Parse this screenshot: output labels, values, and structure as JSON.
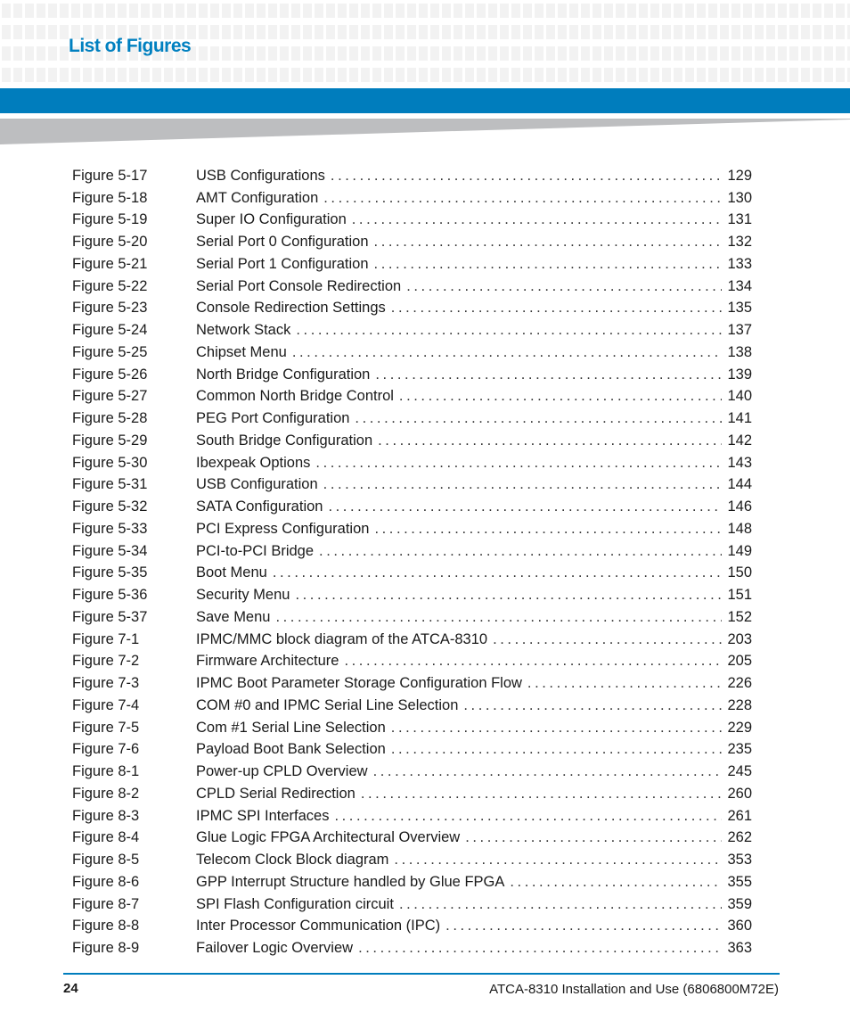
{
  "header": {
    "title": "List of Figures",
    "accent_color": "#007dbd"
  },
  "figures": [
    {
      "label": "Figure 5-17",
      "title": "USB Configurations",
      "page": "129"
    },
    {
      "label": "Figure 5-18",
      "title": "AMT Configuration",
      "page": "130"
    },
    {
      "label": "Figure 5-19",
      "title": "Super IO Configuration",
      "page": "131"
    },
    {
      "label": "Figure 5-20",
      "title": "Serial Port 0 Configuration",
      "page": "132"
    },
    {
      "label": "Figure 5-21",
      "title": "Serial Port 1 Configuration",
      "page": "133"
    },
    {
      "label": "Figure 5-22",
      "title": "Serial Port Console Redirection",
      "page": "134"
    },
    {
      "label": "Figure 5-23",
      "title": "Console Redirection Settings",
      "page": "135"
    },
    {
      "label": "Figure 5-24",
      "title": "Network Stack",
      "page": "137"
    },
    {
      "label": "Figure 5-25",
      "title": "Chipset Menu",
      "page": "138"
    },
    {
      "label": "Figure 5-26",
      "title": "North Bridge Configuration",
      "page": "139"
    },
    {
      "label": "Figure 5-27",
      "title": "Common North Bridge Control",
      "page": "140"
    },
    {
      "label": "Figure 5-28",
      "title": "PEG Port Configuration",
      "page": "141"
    },
    {
      "label": "Figure 5-29",
      "title": "South Bridge Configuration",
      "page": "142"
    },
    {
      "label": "Figure 5-30",
      "title": "Ibexpeak Options",
      "page": "143"
    },
    {
      "label": "Figure 5-31",
      "title": "USB Configuration",
      "page": "144"
    },
    {
      "label": "Figure 5-32",
      "title": "SATA Configuration",
      "page": "146"
    },
    {
      "label": "Figure 5-33",
      "title": "PCI Express Configuration",
      "page": "148"
    },
    {
      "label": "Figure 5-34",
      "title": "PCI-to-PCI Bridge",
      "page": "149"
    },
    {
      "label": "Figure 5-35",
      "title": "Boot Menu",
      "page": "150"
    },
    {
      "label": "Figure 5-36",
      "title": "Security Menu",
      "page": "151"
    },
    {
      "label": "Figure 5-37",
      "title": "Save Menu",
      "page": "152"
    },
    {
      "label": "Figure 7-1",
      "title": "IPMC/MMC block diagram of the ATCA-8310",
      "page": "203"
    },
    {
      "label": "Figure 7-2",
      "title": "Firmware Architecture",
      "page": "205"
    },
    {
      "label": "Figure 7-3",
      "title": "IPMC Boot Parameter Storage Configuration Flow",
      "page": "226"
    },
    {
      "label": "Figure 7-4",
      "title": "COM #0 and IPMC Serial Line Selection",
      "page": "228"
    },
    {
      "label": "Figure 7-5",
      "title": "Com #1 Serial Line Selection",
      "page": "229"
    },
    {
      "label": "Figure 7-6",
      "title": "Payload Boot Bank Selection",
      "page": "235"
    },
    {
      "label": "Figure 8-1",
      "title": "Power-up CPLD Overview",
      "page": "245"
    },
    {
      "label": "Figure 8-2",
      "title": "CPLD Serial Redirection",
      "page": "260"
    },
    {
      "label": "Figure 8-3",
      "title": "IPMC SPI Interfaces",
      "page": "261"
    },
    {
      "label": "Figure 8-4",
      "title": "Glue Logic FPGA Architectural Overview",
      "page": "262"
    },
    {
      "label": "Figure 8-5",
      "title": "Telecom Clock Block diagram",
      "page": "353"
    },
    {
      "label": "Figure 8-6",
      "title": "GPP Interrupt Structure handled by Glue FPGA",
      "page": "355"
    },
    {
      "label": "Figure 8-7",
      "title": "SPI Flash Configuration circuit",
      "page": "359"
    },
    {
      "label": "Figure 8-8",
      "title": "Inter Processor Communication (IPC)",
      "page": "360"
    },
    {
      "label": "Figure 8-9",
      "title": "Failover Logic Overview",
      "page": "363"
    }
  ],
  "footer": {
    "page_number": "24",
    "document": "ATCA-8310 Installation and Use (6806800M72E)"
  }
}
